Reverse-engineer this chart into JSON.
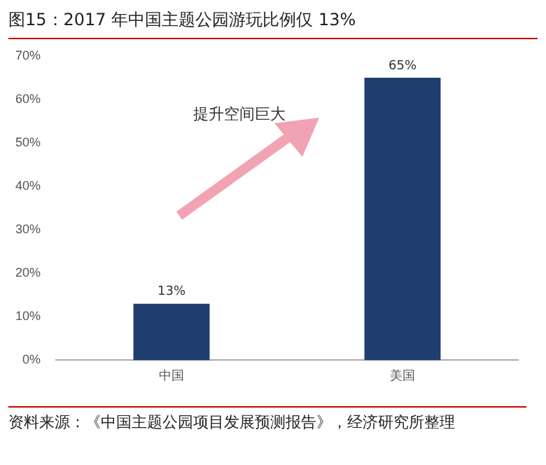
{
  "chart_data": {
    "type": "bar",
    "title": "图15：2017 年中国主题公园游玩比例仅 13%",
    "categories": [
      "中国",
      "美国"
    ],
    "values": [
      13,
      65
    ],
    "color": "#1f3d6e",
    "ylim": [
      0,
      70
    ],
    "yticks": [
      {
        "value": 0,
        "label": "0%"
      },
      {
        "value": 10,
        "label": "10%"
      },
      {
        "value": 20,
        "label": "20%"
      },
      {
        "value": 30,
        "label": "30%"
      },
      {
        "value": 40,
        "label": "40%"
      },
      {
        "value": 50,
        "label": "50%"
      },
      {
        "value": 60,
        "label": "60%"
      },
      {
        "value": 70,
        "label": "70%"
      }
    ],
    "value_labels": [
      "13%",
      "65%"
    ],
    "grid": false,
    "legend": false,
    "annotations": [
      "提升空间巨大",
      "资料来源：《中国主题公园项目发展预测报告》，经济研究所整理"
    ]
  }
}
